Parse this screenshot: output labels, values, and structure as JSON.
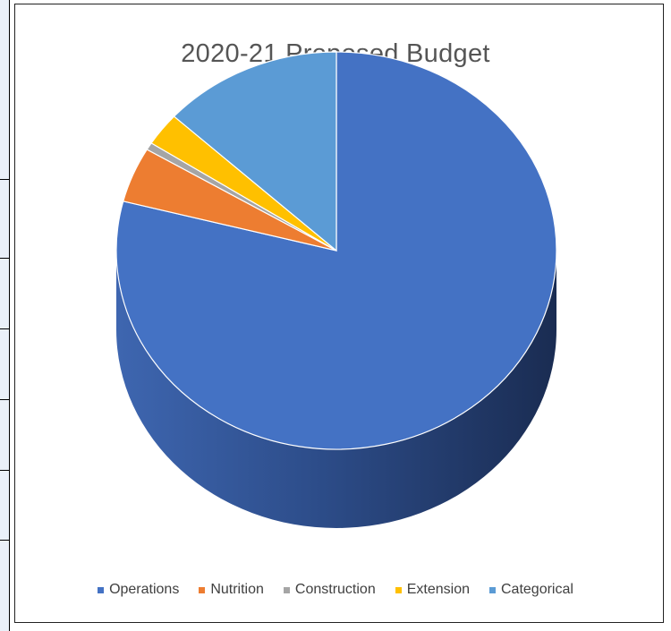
{
  "chart_data": {
    "type": "pie",
    "title": "2020-21 Proposed Budget",
    "categories": [
      "Operations",
      "Nutrition",
      "Construction",
      "Extension",
      "Categorical"
    ],
    "values": [
      79.0,
      4.5,
      0.6,
      2.7,
      13.2
    ],
    "colors": [
      "#4472c4",
      "#ed7d31",
      "#a5a5a5",
      "#ffc000",
      "#5b9bd5"
    ],
    "legend_position": "bottom",
    "style": "3d"
  }
}
